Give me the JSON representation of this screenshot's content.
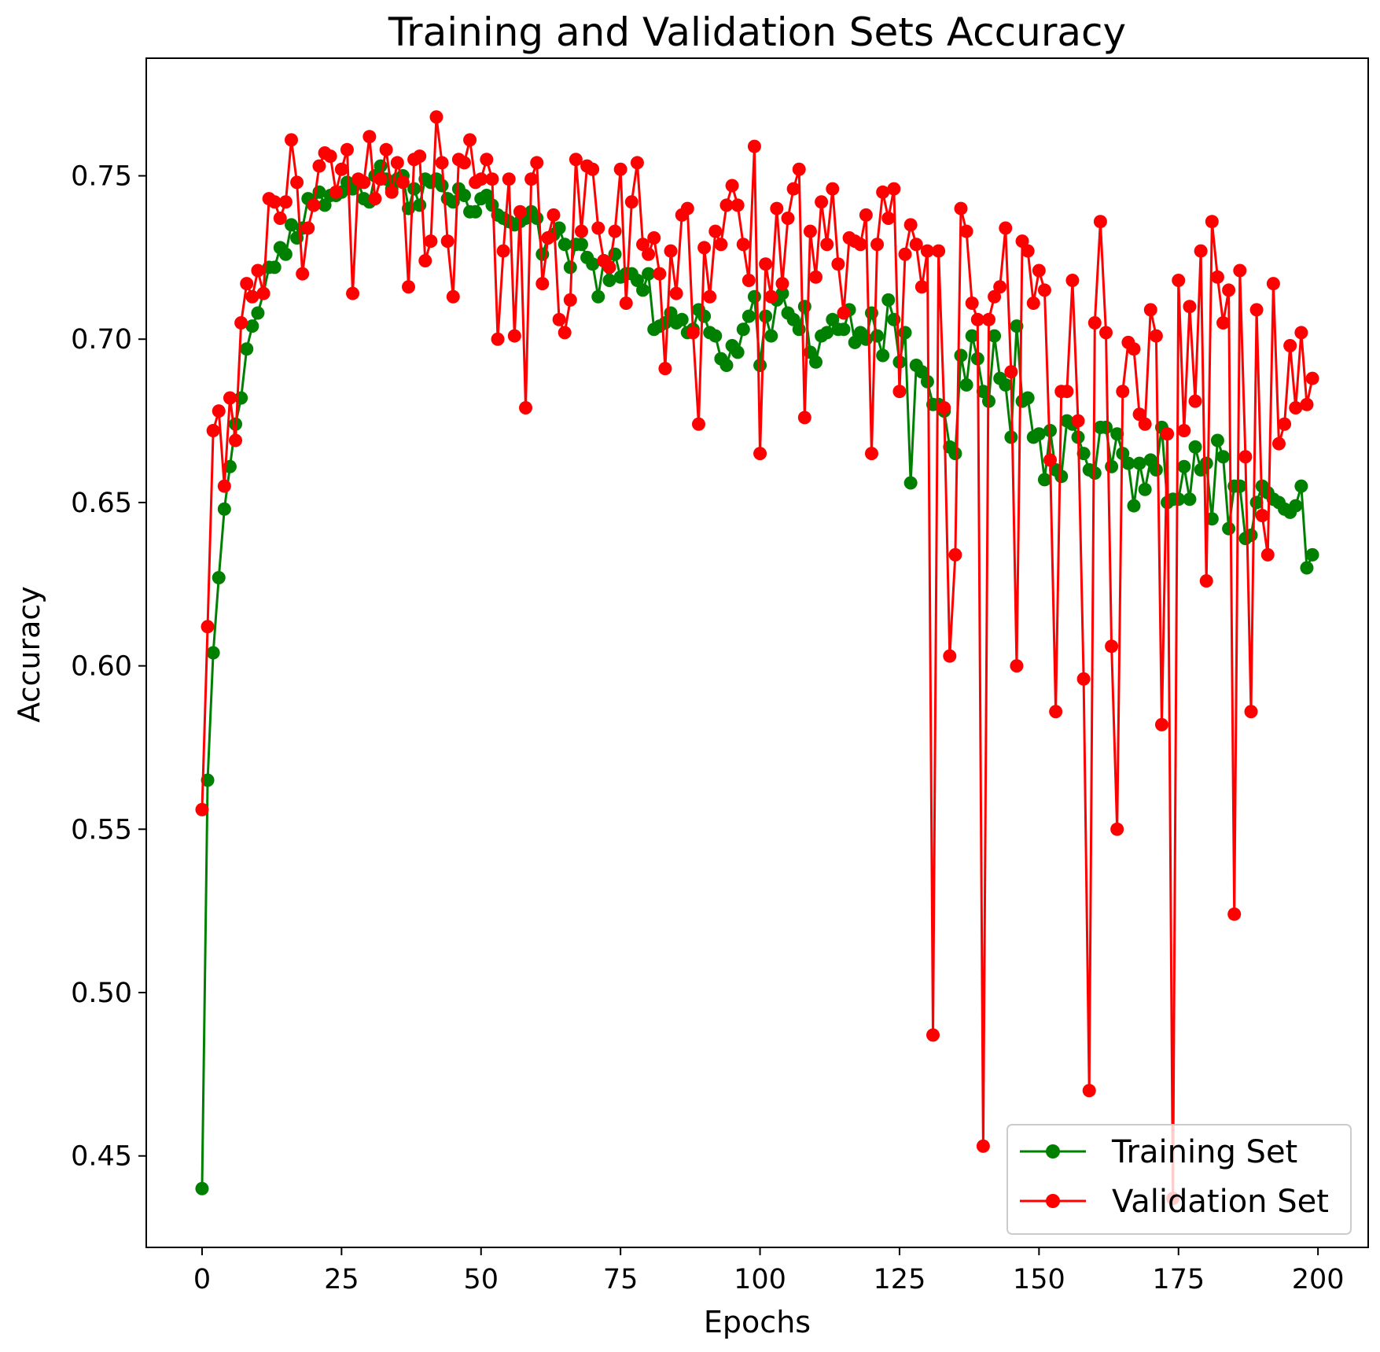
{
  "chart_data": {
    "type": "line",
    "title": "Training and Validation Sets Accuracy",
    "xlabel": "Epochs",
    "ylabel": "Accuracy",
    "xlim": [
      -10,
      209
    ],
    "ylim": [
      0.422,
      0.786
    ],
    "x_ticks": [
      0,
      25,
      50,
      75,
      100,
      125,
      150,
      175,
      200
    ],
    "x_tick_labels": [
      "0",
      "25",
      "50",
      "75",
      "100",
      "125",
      "150",
      "175",
      "200"
    ],
    "y_ticks": [
      0.45,
      0.5,
      0.55,
      0.6,
      0.65,
      0.7,
      0.75
    ],
    "y_tick_labels": [
      "0.45",
      "0.50",
      "0.55",
      "0.60",
      "0.65",
      "0.70",
      "0.75"
    ],
    "grid": false,
    "legend_position": "lower right",
    "series": [
      {
        "name": "Training Set",
        "color": "#008000",
        "marker": "circle",
        "x_start": 0,
        "values": [
          0.44,
          0.565,
          0.604,
          0.627,
          0.648,
          0.661,
          0.674,
          0.682,
          0.697,
          0.704,
          0.708,
          0.714,
          0.722,
          0.722,
          0.728,
          0.726,
          0.735,
          0.731,
          0.734,
          0.743,
          0.741,
          0.745,
          0.741,
          0.744,
          0.744,
          0.745,
          0.748,
          0.746,
          0.748,
          0.743,
          0.742,
          0.75,
          0.753,
          0.749,
          0.746,
          0.749,
          0.75,
          0.74,
          0.746,
          0.741,
          0.749,
          0.748,
          0.749,
          0.747,
          0.743,
          0.742,
          0.746,
          0.744,
          0.739,
          0.739,
          0.743,
          0.744,
          0.741,
          0.738,
          0.737,
          0.736,
          0.735,
          0.736,
          0.737,
          0.739,
          0.737,
          0.726,
          0.731,
          0.732,
          0.734,
          0.729,
          0.722,
          0.729,
          0.729,
          0.725,
          0.723,
          0.713,
          0.724,
          0.718,
          0.726,
          0.719,
          0.72,
          0.72,
          0.718,
          0.715,
          0.72,
          0.703,
          0.704,
          0.705,
          0.708,
          0.705,
          0.706,
          0.702,
          0.703,
          0.709,
          0.707,
          0.702,
          0.701,
          0.694,
          0.692,
          0.698,
          0.696,
          0.703,
          0.707,
          0.713,
          0.692,
          0.707,
          0.701,
          0.712,
          0.714,
          0.708,
          0.706,
          0.703,
          0.71,
          0.696,
          0.693,
          0.701,
          0.702,
          0.706,
          0.703,
          0.703,
          0.709,
          0.699,
          0.702,
          0.7,
          0.708,
          0.701,
          0.695,
          0.712,
          0.706,
          0.693,
          0.702,
          0.656,
          0.692,
          0.69,
          0.687,
          0.68,
          0.68,
          0.678,
          0.667,
          0.665,
          0.695,
          0.686,
          0.701,
          0.694,
          0.684,
          0.681,
          0.701,
          0.688,
          0.686,
          0.67,
          0.704,
          0.681,
          0.682,
          0.67,
          0.671,
          0.657,
          0.672,
          0.66,
          0.658,
          0.675,
          0.674,
          0.67,
          0.665,
          0.66,
          0.659,
          0.673,
          0.673,
          0.661,
          0.671,
          0.665,
          0.662,
          0.649,
          0.662,
          0.654,
          0.663,
          0.66,
          0.673,
          0.65,
          0.651,
          0.651,
          0.661,
          0.651,
          0.667,
          0.66,
          0.662,
          0.645,
          0.669,
          0.664,
          0.642,
          0.655,
          0.655,
          0.639,
          0.64,
          0.65,
          0.655,
          0.653,
          0.651,
          0.65,
          0.648,
          0.647,
          0.649,
          0.655,
          0.63,
          0.634
        ]
      },
      {
        "name": "Validation Set",
        "color": "#ff0000",
        "marker": "circle",
        "x_start": 0,
        "values": [
          0.556,
          0.612,
          0.672,
          0.678,
          0.655,
          0.682,
          0.669,
          0.705,
          0.717,
          0.713,
          0.721,
          0.714,
          0.743,
          0.742,
          0.737,
          0.742,
          0.761,
          0.748,
          0.72,
          0.734,
          0.741,
          0.753,
          0.757,
          0.756,
          0.745,
          0.752,
          0.758,
          0.714,
          0.749,
          0.748,
          0.762,
          0.743,
          0.749,
          0.758,
          0.745,
          0.754,
          0.748,
          0.716,
          0.755,
          0.756,
          0.724,
          0.73,
          0.768,
          0.754,
          0.73,
          0.713,
          0.755,
          0.754,
          0.761,
          0.748,
          0.749,
          0.755,
          0.749,
          0.7,
          0.727,
          0.749,
          0.701,
          0.739,
          0.679,
          0.749,
          0.754,
          0.717,
          0.731,
          0.738,
          0.706,
          0.702,
          0.712,
          0.755,
          0.733,
          0.753,
          0.752,
          0.734,
          0.724,
          0.722,
          0.733,
          0.752,
          0.711,
          0.742,
          0.754,
          0.729,
          0.726,
          0.731,
          0.72,
          0.691,
          0.727,
          0.714,
          0.738,
          0.74,
          0.702,
          0.674,
          0.728,
          0.713,
          0.733,
          0.729,
          0.741,
          0.747,
          0.741,
          0.729,
          0.718,
          0.759,
          0.665,
          0.723,
          0.713,
          0.74,
          0.717,
          0.737,
          0.746,
          0.752,
          0.676,
          0.733,
          0.719,
          0.742,
          0.729,
          0.746,
          0.723,
          0.708,
          0.731,
          0.73,
          0.729,
          0.738,
          0.665,
          0.729,
          0.745,
          0.737,
          0.746,
          0.684,
          0.726,
          0.735,
          0.729,
          0.716,
          0.727,
          0.487,
          0.727,
          0.679,
          0.603,
          0.634,
          0.74,
          0.733,
          0.711,
          0.706,
          0.453,
          0.706,
          0.713,
          0.716,
          0.734,
          0.69,
          0.6,
          0.73,
          0.727,
          0.711,
          0.721,
          0.715,
          0.663,
          0.586,
          0.684,
          0.684,
          0.718,
          0.675,
          0.596,
          0.47,
          0.705,
          0.736,
          0.702,
          0.606,
          0.55,
          0.684,
          0.699,
          0.697,
          0.677,
          0.674,
          0.709,
          0.701,
          0.582,
          0.671,
          0.437,
          0.718,
          0.672,
          0.71,
          0.681,
          0.727,
          0.626,
          0.736,
          0.719,
          0.705,
          0.715,
          0.524,
          0.721,
          0.664,
          0.586,
          0.709,
          0.646,
          0.634,
          0.717,
          0.668,
          0.674,
          0.698,
          0.679,
          0.702,
          0.68,
          0.688
        ]
      }
    ]
  }
}
